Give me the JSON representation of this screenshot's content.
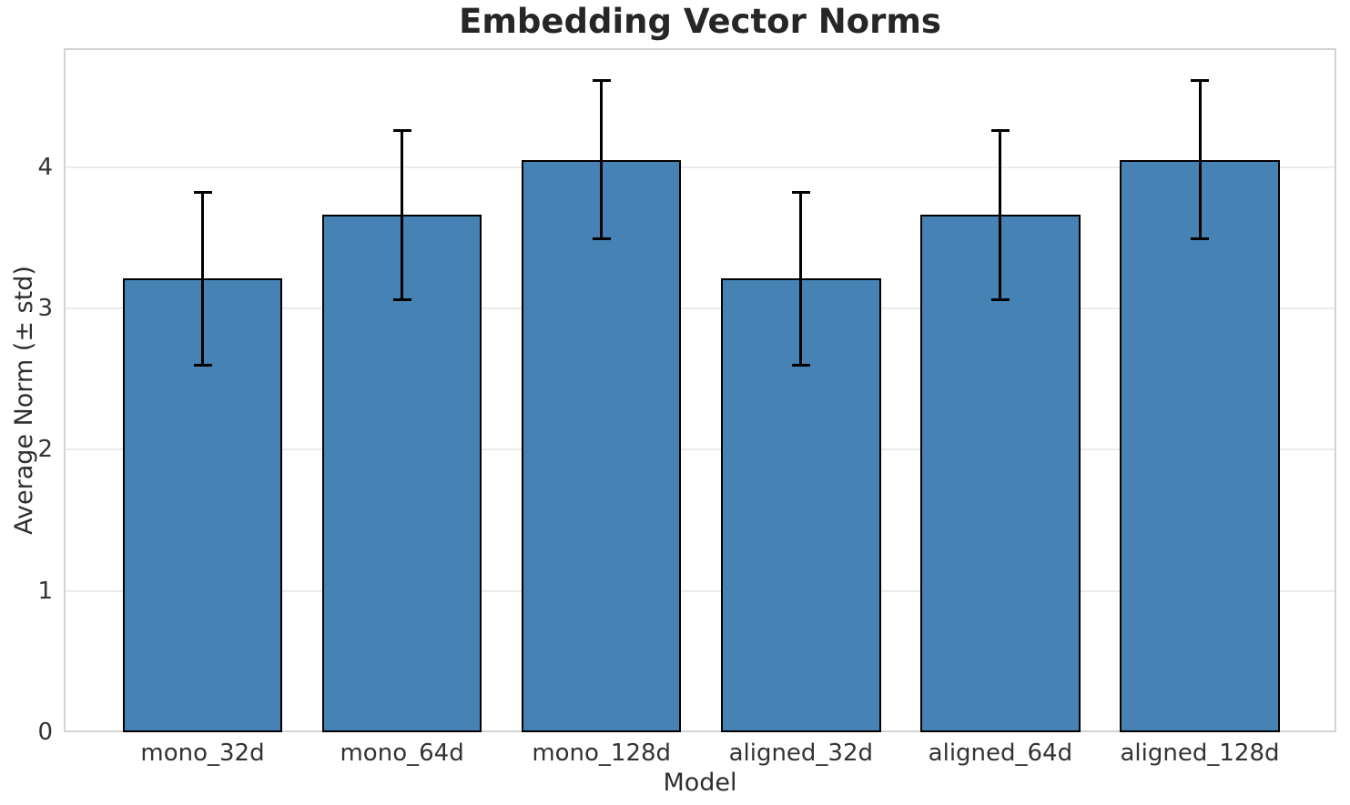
{
  "chart_data": {
    "type": "bar",
    "title": "Embedding Vector Norms",
    "xlabel": "Model",
    "ylabel": "Average Norm (± std)",
    "categories": [
      "mono_32d",
      "mono_64d",
      "mono_128d",
      "aligned_32d",
      "aligned_64d",
      "aligned_128d"
    ],
    "series": [
      {
        "name": "Average Norm",
        "values": [
          3.21,
          3.66,
          4.05,
          3.21,
          3.66,
          4.05
        ],
        "errors": [
          0.61,
          0.6,
          0.56,
          0.61,
          0.6,
          0.56
        ]
      }
    ],
    "yticks": [
      0,
      1,
      2,
      3,
      4
    ],
    "ylim": [
      0,
      4.84
    ],
    "grid": true,
    "legend": "none",
    "colors": {
      "bar_fill": "#4682B4",
      "bar_edge": "#000000",
      "error_bar": "#000000",
      "gridline": "#EBEBEB",
      "spine": "#D3D3D3",
      "text": "#262626"
    }
  }
}
